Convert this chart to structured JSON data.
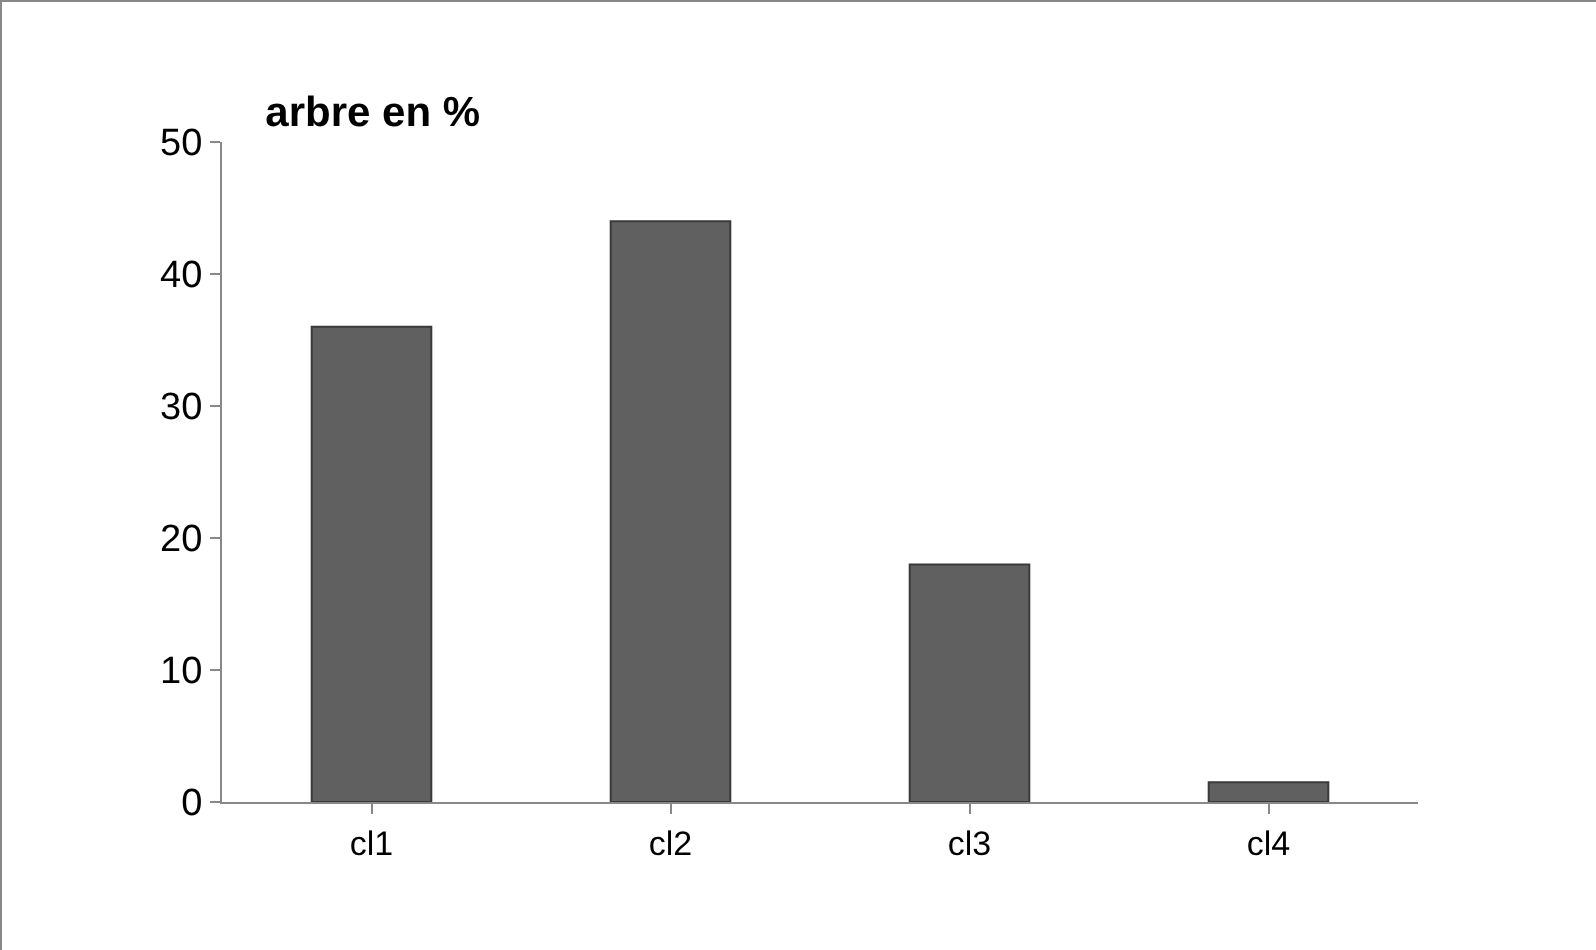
{
  "chart_data": {
    "type": "bar",
    "title": "arbre en %",
    "categories": [
      "cl1",
      "cl2",
      "cl3",
      "cl4"
    ],
    "values": [
      36,
      44,
      18,
      1.5
    ],
    "color": "#606060",
    "ylim": [
      0,
      50
    ],
    "yticks": [
      0,
      10,
      20,
      30,
      40,
      50
    ],
    "grid": false,
    "legend": false
  }
}
